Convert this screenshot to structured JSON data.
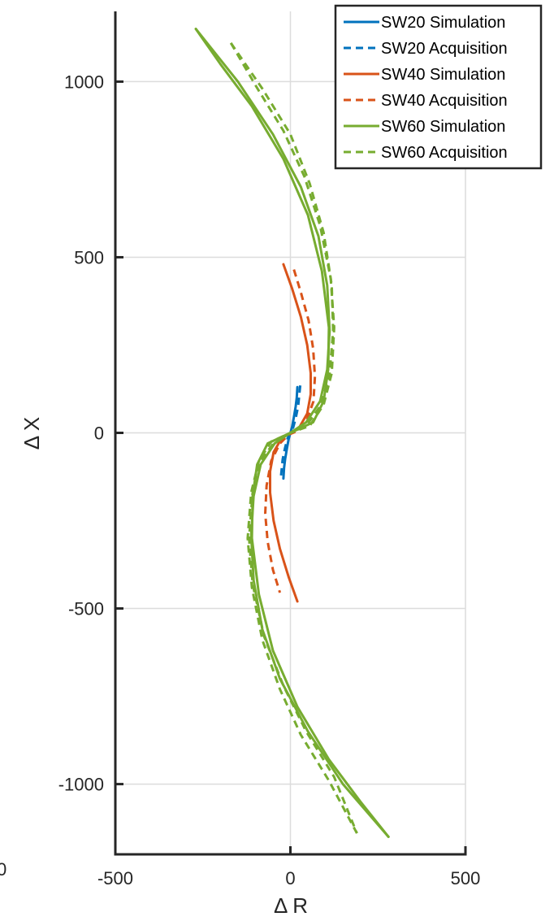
{
  "chart_data": {
    "type": "line",
    "title": "",
    "xlabel": "Δ R",
    "ylabel": "Δ X",
    "xlim": [
      -500,
      500
    ],
    "ylim": [
      -1200,
      1200
    ],
    "xticks": [
      -500,
      0,
      500
    ],
    "yticks": [
      -1000,
      -500,
      0,
      500,
      1000
    ],
    "xtick_labels": [
      "-500",
      "0",
      "500"
    ],
    "ytick_labels": [
      "-1000",
      "-500",
      "0",
      "500",
      "1000"
    ],
    "stray_tick_label": "0",
    "grid": true,
    "legend_position": "top-right",
    "series": [
      {
        "name": "SW20 Simulation",
        "color": "#0072BD",
        "dash": "solid",
        "points": [
          [
            20,
            130
          ],
          [
            18,
            100
          ],
          [
            15,
            75
          ],
          [
            10,
            45
          ],
          [
            5,
            18
          ],
          [
            0,
            0
          ],
          [
            -5,
            -18
          ],
          [
            -10,
            -45
          ],
          [
            -15,
            -75
          ],
          [
            -18,
            -100
          ],
          [
            -20,
            -130
          ]
        ]
      },
      {
        "name": "SW20 Acquisition",
        "color": "#0072BD",
        "dash": "dashed",
        "points": [
          [
            28,
            135
          ],
          [
            25,
            105
          ],
          [
            22,
            75
          ],
          [
            15,
            42
          ],
          [
            8,
            15
          ],
          [
            0,
            0
          ],
          [
            -8,
            -15
          ],
          [
            -15,
            -42
          ],
          [
            -22,
            -75
          ],
          [
            -25,
            -105
          ],
          [
            -28,
            -135
          ]
        ]
      },
      {
        "name": "SW40 Simulation",
        "color": "#D95319",
        "dash": "solid",
        "points": [
          [
            -20,
            480
          ],
          [
            5,
            410
          ],
          [
            30,
            330
          ],
          [
            48,
            250
          ],
          [
            58,
            170
          ],
          [
            58,
            110
          ],
          [
            48,
            55
          ],
          [
            25,
            15
          ],
          [
            0,
            0
          ],
          [
            -25,
            -15
          ],
          [
            -48,
            -55
          ],
          [
            -58,
            -110
          ],
          [
            -58,
            -170
          ],
          [
            -48,
            -250
          ],
          [
            -30,
            -330
          ],
          [
            -5,
            -410
          ],
          [
            20,
            -480
          ]
        ]
      },
      {
        "name": "SW40 Acquisition",
        "color": "#D95319",
        "dash": "dashed",
        "points": [
          [
            10,
            465
          ],
          [
            30,
            400
          ],
          [
            52,
            320
          ],
          [
            65,
            240
          ],
          [
            70,
            160
          ],
          [
            66,
            90
          ],
          [
            48,
            40
          ],
          [
            20,
            5
          ],
          [
            -5,
            -5
          ],
          [
            -30,
            -30
          ],
          [
            -55,
            -80
          ],
          [
            -68,
            -150
          ],
          [
            -72,
            -230
          ],
          [
            -65,
            -310
          ],
          [
            -50,
            -390
          ],
          [
            -30,
            -455
          ]
        ]
      },
      {
        "name": "SW60 Simulation (outer)",
        "color": "#77AC30",
        "dash": "solid",
        "points": [
          [
            -270,
            1150
          ],
          [
            -200,
            1050
          ],
          [
            -110,
            930
          ],
          [
            -20,
            780
          ],
          [
            50,
            620
          ],
          [
            90,
            460
          ],
          [
            110,
            300
          ],
          [
            108,
            180
          ],
          [
            95,
            90
          ],
          [
            65,
            30
          ],
          [
            0,
            0
          ],
          [
            -65,
            -30
          ],
          [
            -95,
            -90
          ],
          [
            -108,
            -180
          ],
          [
            -110,
            -300
          ],
          [
            -90,
            -460
          ],
          [
            -50,
            -620
          ],
          [
            20,
            -780
          ],
          [
            110,
            -930
          ],
          [
            200,
            -1050
          ],
          [
            280,
            -1150
          ]
        ]
      },
      {
        "name": "SW60 Simulation (inner)",
        "color": "#77AC30",
        "dash": "solid",
        "points": [
          [
            -270,
            1150
          ],
          [
            -150,
            1000
          ],
          [
            -50,
            850
          ],
          [
            30,
            700
          ],
          [
            80,
            560
          ],
          [
            105,
            420
          ],
          [
            112,
            290
          ],
          [
            105,
            180
          ],
          [
            85,
            90
          ],
          [
            45,
            30
          ],
          [
            0,
            0
          ],
          [
            -45,
            -30
          ],
          [
            -85,
            -90
          ],
          [
            -105,
            -180
          ],
          [
            -112,
            -290
          ],
          [
            -105,
            -420
          ],
          [
            -80,
            -560
          ],
          [
            -30,
            -700
          ],
          [
            50,
            -850
          ],
          [
            150,
            -1000
          ],
          [
            280,
            -1150
          ]
        ]
      },
      {
        "name": "SW60 Acquisition (outer)",
        "color": "#77AC30",
        "dash": "dashed",
        "points": [
          [
            -170,
            1110
          ],
          [
            -100,
            990
          ],
          [
            -20,
            860
          ],
          [
            40,
            730
          ],
          [
            85,
            590
          ],
          [
            115,
            440
          ],
          [
            125,
            300
          ],
          [
            118,
            170
          ],
          [
            95,
            80
          ],
          [
            55,
            20
          ],
          [
            0,
            0
          ],
          [
            -55,
            -25
          ],
          [
            -90,
            -80
          ],
          [
            -112,
            -170
          ],
          [
            -122,
            -300
          ],
          [
            -110,
            -440
          ],
          [
            -80,
            -590
          ],
          [
            -30,
            -730
          ],
          [
            30,
            -860
          ],
          [
            110,
            -990
          ],
          [
            190,
            -1140
          ]
        ]
      },
      {
        "name": "SW60 Acquisition (inner)",
        "color": "#77AC30",
        "dash": "dashed",
        "points": [
          [
            -170,
            1110
          ],
          [
            -80,
            980
          ],
          [
            0,
            850
          ],
          [
            55,
            710
          ],
          [
            95,
            570
          ],
          [
            118,
            420
          ],
          [
            122,
            290
          ],
          [
            112,
            170
          ],
          [
            88,
            80
          ],
          [
            45,
            20
          ],
          [
            0,
            0
          ],
          [
            -45,
            -25
          ],
          [
            -85,
            -80
          ],
          [
            -108,
            -170
          ],
          [
            -118,
            -300
          ],
          [
            -108,
            -430
          ],
          [
            -75,
            -580
          ],
          [
            -20,
            -720
          ],
          [
            45,
            -850
          ],
          [
            125,
            -980
          ],
          [
            190,
            -1140
          ]
        ]
      }
    ],
    "legend": [
      {
        "label": "SW20 Simulation",
        "color": "#0072BD",
        "dash": "solid"
      },
      {
        "label": "SW20 Acquisition",
        "color": "#0072BD",
        "dash": "dashed"
      },
      {
        "label": "SW40 Simulation",
        "color": "#D95319",
        "dash": "solid"
      },
      {
        "label": "SW40 Acquisition",
        "color": "#D95319",
        "dash": "dashed"
      },
      {
        "label": "SW60 Simulation",
        "color": "#77AC30",
        "dash": "solid"
      },
      {
        "label": "SW60 Acquisition",
        "color": "#77AC30",
        "dash": "dashed"
      }
    ]
  }
}
